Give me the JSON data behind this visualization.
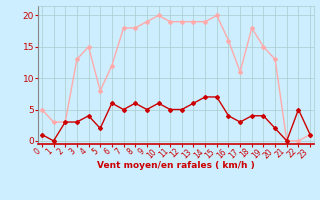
{
  "x": [
    0,
    1,
    2,
    3,
    4,
    5,
    6,
    7,
    8,
    9,
    10,
    11,
    12,
    13,
    14,
    15,
    16,
    17,
    18,
    19,
    20,
    21,
    22,
    23
  ],
  "mean_wind": [
    1,
    0,
    3,
    3,
    4,
    2,
    6,
    5,
    6,
    5,
    6,
    5,
    5,
    6,
    7,
    7,
    4,
    3,
    4,
    4,
    2,
    0,
    5,
    1
  ],
  "gust_wind": [
    5,
    3,
    3,
    13,
    15,
    8,
    12,
    18,
    18,
    19,
    20,
    19,
    19,
    19,
    19,
    20,
    16,
    11,
    18,
    15,
    13,
    0,
    0,
    1
  ],
  "mean_color": "#cc0000",
  "gust_color": "#ffaaaa",
  "bg_color": "#cceeff",
  "grid_color": "#aacccc",
  "xlabel": "Vent moyen/en rafales ( km/h )",
  "xlabel_color": "#cc0000",
  "yticks": [
    0,
    5,
    10,
    15,
    20
  ],
  "xticks": [
    0,
    1,
    2,
    3,
    4,
    5,
    6,
    7,
    8,
    9,
    10,
    11,
    12,
    13,
    14,
    15,
    16,
    17,
    18,
    19,
    20,
    21,
    22,
    23
  ],
  "ylim": [
    -0.5,
    21.5
  ],
  "xlim": [
    -0.3,
    23.3
  ],
  "tick_color": "#cc0000",
  "marker": "D",
  "markersize": 2,
  "linewidth": 1.0
}
